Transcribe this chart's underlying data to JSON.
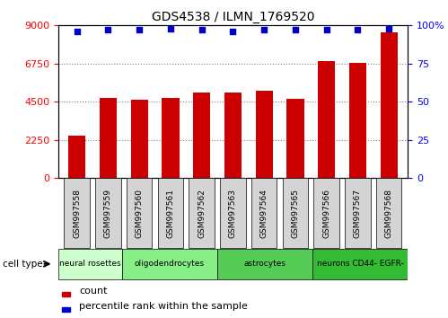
{
  "title": "GDS4538 / ILMN_1769520",
  "samples": [
    "GSM997558",
    "GSM997559",
    "GSM997560",
    "GSM997561",
    "GSM997562",
    "GSM997563",
    "GSM997564",
    "GSM997565",
    "GSM997566",
    "GSM997567",
    "GSM997568"
  ],
  "counts": [
    2500,
    4750,
    4600,
    4750,
    5050,
    5050,
    5150,
    4700,
    6900,
    6800,
    8600
  ],
  "percentile_ranks": [
    96,
    97,
    97,
    98,
    97,
    96,
    97,
    97,
    97,
    97,
    98
  ],
  "cell_types": [
    {
      "label": "neural rosettes",
      "start": 0,
      "end": 2,
      "color": "#ccffcc"
    },
    {
      "label": "oligodendrocytes",
      "start": 2,
      "end": 5,
      "color": "#88ee88"
    },
    {
      "label": "astrocytes",
      "start": 5,
      "end": 8,
      "color": "#55cc55"
    },
    {
      "label": "neurons CD44- EGFR-",
      "start": 8,
      "end": 11,
      "color": "#33bb33"
    }
  ],
  "bar_color": "#cc0000",
  "dot_color": "#0000cc",
  "ylim_left": [
    0,
    9000
  ],
  "ylim_right": [
    0,
    100
  ],
  "yticks_left": [
    0,
    2250,
    4500,
    6750,
    9000
  ],
  "yticks_right": [
    0,
    25,
    50,
    75,
    100
  ],
  "background_color": "#ffffff",
  "legend_count_label": "count",
  "legend_pct_label": "percentile rank within the sample",
  "cell_type_label": "cell type"
}
